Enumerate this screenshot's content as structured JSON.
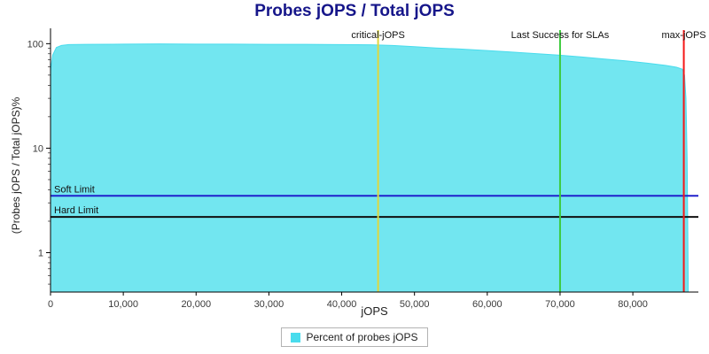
{
  "page": {
    "title": "Probes jOPS / Total jOPS",
    "title_color": "#16168a"
  },
  "axes": {
    "xlabel": "jOPS",
    "ylabel": "(Probes jOPS / Total jOPS)%"
  },
  "legend": {
    "label": "Percent of probes jOPS"
  },
  "chart_data": {
    "type": "area",
    "title": "Probes jOPS / Total jOPS",
    "xlabel": "jOPS",
    "ylabel": "(Probes jOPS / Total jOPS)%",
    "y_scale": "log",
    "xlim": [
      0,
      89000
    ],
    "ylim": [
      0.42,
      120
    ],
    "x_ticks": [
      0,
      10000,
      20000,
      30000,
      40000,
      50000,
      60000,
      70000,
      80000
    ],
    "x_tick_labels": [
      "0",
      "10,000",
      "20,000",
      "30,000",
      "40,000",
      "50,000",
      "60,000",
      "70,000",
      "80,000"
    ],
    "y_ticks": [
      1,
      10,
      100
    ],
    "y_tick_labels": [
      "1",
      "10",
      "100"
    ],
    "grid": false,
    "legend_position": "bottom",
    "series": [
      {
        "name": "Percent of probes jOPS",
        "color": "#72e6f0",
        "edge_color": "#49dced",
        "points": [
          [
            0,
            55
          ],
          [
            300,
            78
          ],
          [
            800,
            92
          ],
          [
            1500,
            96
          ],
          [
            2500,
            98
          ],
          [
            5000,
            98.5
          ],
          [
            10000,
            99
          ],
          [
            15000,
            99.5
          ],
          [
            20000,
            99
          ],
          [
            25000,
            99
          ],
          [
            30000,
            98.5
          ],
          [
            35000,
            98.5
          ],
          [
            40000,
            98
          ],
          [
            44000,
            97.5
          ],
          [
            45000,
            97
          ],
          [
            47000,
            96
          ],
          [
            50000,
            93.5
          ],
          [
            53000,
            91
          ],
          [
            56000,
            89
          ],
          [
            60000,
            86
          ],
          [
            63000,
            83.5
          ],
          [
            66000,
            81
          ],
          [
            70000,
            77.5
          ],
          [
            73000,
            74.5
          ],
          [
            76000,
            71.5
          ],
          [
            79000,
            68.5
          ],
          [
            82000,
            65
          ],
          [
            84500,
            62
          ],
          [
            86000,
            59.5
          ],
          [
            86800,
            57
          ],
          [
            87100,
            50
          ],
          [
            87300,
            30
          ],
          [
            87450,
            8
          ],
          [
            87550,
            1.5
          ],
          [
            87600,
            0.55
          ]
        ]
      }
    ],
    "vlines": [
      {
        "label": "critical-jOPS",
        "x": 45000,
        "color": "#e0d73e"
      },
      {
        "label": "Last Success for SLAs",
        "x": 70000,
        "color": "#3ecb3e"
      },
      {
        "label": "max-jOPS",
        "x": 87000,
        "color": "#f51818"
      }
    ],
    "hlines": [
      {
        "label": "Soft Limit",
        "y": 3.5,
        "color": "#2020cc"
      },
      {
        "label": "Hard Limit",
        "y": 2.2,
        "color": "#101010"
      }
    ]
  }
}
